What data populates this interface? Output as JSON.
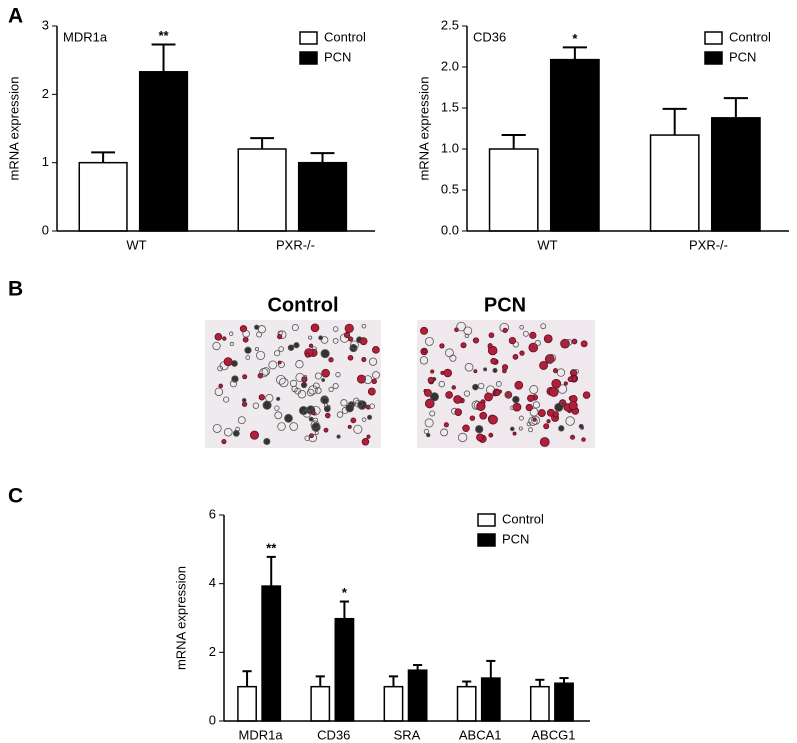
{
  "panel_labels": [
    "A",
    "B",
    "C"
  ],
  "micrographs": {
    "labels": [
      "Control",
      "PCN"
    ]
  },
  "chart_data": [
    {
      "type": "bar",
      "title": "MDR1a",
      "ylabel": "mRNA expression",
      "categories": [
        "WT",
        "PXR-/-"
      ],
      "series": [
        {
          "name": "Control",
          "color": "#ffffff",
          "values": [
            1.0,
            1.2
          ],
          "errors": [
            0.15,
            0.16
          ]
        },
        {
          "name": "PCN",
          "color": "#000000",
          "values": [
            2.33,
            1.0
          ],
          "errors": [
            0.4,
            0.14
          ]
        }
      ],
      "annotations": [
        {
          "category": "WT",
          "series": "PCN",
          "text": "**"
        }
      ],
      "ylim": [
        0,
        3
      ],
      "yticks": [
        0,
        1,
        2,
        3
      ],
      "legend": "upper right"
    },
    {
      "type": "bar",
      "title": "CD36",
      "ylabel": "mRNA expression",
      "categories": [
        "WT",
        "PXR-/-"
      ],
      "series": [
        {
          "name": "Control",
          "color": "#ffffff",
          "values": [
            1.0,
            1.17
          ],
          "errors": [
            0.17,
            0.32
          ]
        },
        {
          "name": "PCN",
          "color": "#000000",
          "values": [
            2.09,
            1.38
          ],
          "errors": [
            0.15,
            0.24
          ]
        }
      ],
      "annotations": [
        {
          "category": "WT",
          "series": "PCN",
          "text": "*"
        }
      ],
      "ylim": [
        0,
        2.5
      ],
      "yticks": [
        {
          "value": 0,
          "label": "0.0"
        },
        0.5,
        {
          "value": 1,
          "label": "1.0"
        },
        1.5,
        {
          "value": 2,
          "label": "2.0"
        },
        2.5
      ],
      "legend": "upper right"
    },
    {
      "type": "bar",
      "ylabel": "mRNA expression",
      "categories": [
        "MDR1a",
        "CD36",
        "SRA",
        "ABCA1",
        "ABCG1"
      ],
      "series": [
        {
          "name": "Control",
          "color": "#ffffff",
          "values": [
            1,
            1,
            1,
            1,
            1
          ],
          "errors": [
            0.45,
            0.3,
            0.3,
            0.15,
            0.2
          ]
        },
        {
          "name": "PCN",
          "color": "#000000",
          "values": [
            3.93,
            2.98,
            1.48,
            1.25,
            1.1
          ],
          "errors": [
            0.85,
            0.5,
            0.15,
            0.5,
            0.15
          ]
        }
      ],
      "annotations": [
        {
          "category": "MDR1a",
          "series": "PCN",
          "text": "**"
        },
        {
          "category": "CD36",
          "series": "PCN",
          "text": "*"
        }
      ],
      "ylim": [
        0,
        6
      ],
      "yticks": [
        0,
        2,
        4,
        6
      ],
      "legend": "upper right"
    }
  ]
}
